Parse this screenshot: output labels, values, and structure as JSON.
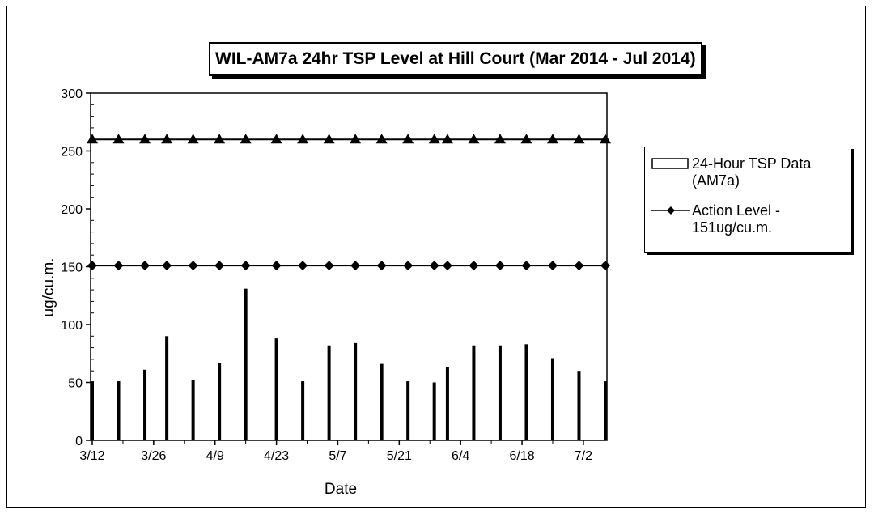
{
  "chart_data": {
    "type": "bar",
    "title": "WIL-AM7a 24hr TSP Level at Hill Court (Mar 2014 - Jul 2014)",
    "xlabel": "Date",
    "ylabel": "ug/cu.m.",
    "ylim": [
      0,
      300
    ],
    "yticks": [
      0,
      50,
      100,
      150,
      200,
      250,
      300
    ],
    "xticks": [
      "3/12",
      "3/26",
      "4/9",
      "4/23",
      "5/7",
      "5/21",
      "6/4",
      "6/18",
      "7/2"
    ],
    "xtick_days": [
      71,
      85,
      99,
      113,
      127,
      141,
      155,
      169,
      183
    ],
    "xlim_days": [
      71,
      188
    ],
    "grid": false,
    "legend_position": "right",
    "series": [
      {
        "name": "24-Hour TSP Data (AM7a)",
        "type": "bar",
        "color": "#000000",
        "days": [
          71,
          77,
          83,
          88,
          94,
          100,
          106,
          113,
          119,
          125,
          131,
          137,
          143,
          149,
          152,
          158,
          164,
          170,
          176,
          182,
          188
        ],
        "dates": [
          "3/12",
          "3/18",
          "3/24",
          "3/29",
          "4/4",
          "4/10",
          "4/16",
          "4/23",
          "4/29",
          "5/5",
          "5/11",
          "5/17",
          "5/23",
          "5/29",
          "6/1",
          "6/7",
          "6/13",
          "6/19",
          "6/25",
          "7/1",
          "7/7"
        ],
        "values": [
          51,
          51,
          61,
          90,
          52,
          67,
          131,
          88,
          51,
          82,
          84,
          66,
          51,
          50,
          63,
          82,
          82,
          83,
          71,
          60,
          51
        ]
      },
      {
        "name": "Action Level - 151ug/cu.m.",
        "type": "line",
        "marker": "diamond",
        "color": "#000000",
        "days": [
          71,
          77,
          83,
          88,
          94,
          100,
          106,
          113,
          119,
          125,
          131,
          137,
          143,
          149,
          152,
          158,
          164,
          170,
          176,
          182,
          188
        ],
        "values": [
          151,
          151,
          151,
          151,
          151,
          151,
          151,
          151,
          151,
          151,
          151,
          151,
          151,
          151,
          151,
          151,
          151,
          151,
          151,
          151,
          151
        ]
      },
      {
        "name": "",
        "type": "line",
        "marker": "triangle",
        "color": "#000000",
        "days": [
          71,
          77,
          83,
          88,
          94,
          100,
          106,
          113,
          119,
          125,
          131,
          137,
          143,
          149,
          152,
          158,
          164,
          170,
          176,
          182,
          188
        ],
        "values": [
          260,
          260,
          260,
          260,
          260,
          260,
          260,
          260,
          260,
          260,
          260,
          260,
          260,
          260,
          260,
          260,
          260,
          260,
          260,
          260,
          260
        ]
      }
    ]
  },
  "legend": {
    "bar_label": "24-Hour TSP Data (AM7a)",
    "line_label": "Action Level - 151ug/cu.m."
  }
}
